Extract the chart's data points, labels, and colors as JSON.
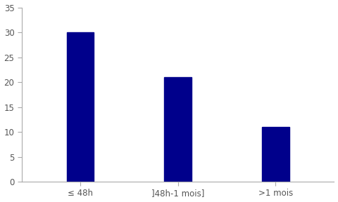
{
  "categories": [
    "≤ 48h",
    "]48h-1 mois]",
    ">1 mois"
  ],
  "values": [
    30,
    21,
    11
  ],
  "bar_color": "#00008B",
  "ylim": [
    0,
    35
  ],
  "yticks": [
    0,
    5,
    10,
    15,
    20,
    25,
    30,
    35
  ],
  "background_color": "#ffffff",
  "bar_width": 0.28,
  "tick_label_fontsize": 8.5,
  "spine_color": "#aaaaaa"
}
